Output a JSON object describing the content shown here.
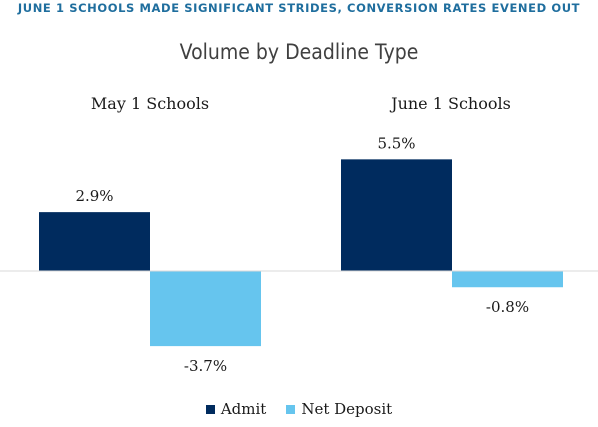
{
  "banner": "JUNE 1 SCHOOLS MADE SIGNIFICANT STRIDES, CONVERSION RATES EVENED OUT",
  "chart_data": {
    "type": "bar",
    "title": "Volume by Deadline Type",
    "categories": [
      "May 1 Schools",
      "June 1 Schools"
    ],
    "series": [
      {
        "name": "Admit",
        "values": [
          2.9,
          5.5
        ],
        "labels": [
          "2.9%",
          "5.5%"
        ],
        "color": "#002b5e"
      },
      {
        "name": "Net Deposit",
        "values": [
          -3.7,
          -0.8
        ],
        "labels": [
          "-3.7%",
          "-0.8%"
        ],
        "color": "#66c5ee"
      }
    ],
    "legend_position": "bottom",
    "grid": false,
    "baseline_color": "#d9d9d9"
  }
}
